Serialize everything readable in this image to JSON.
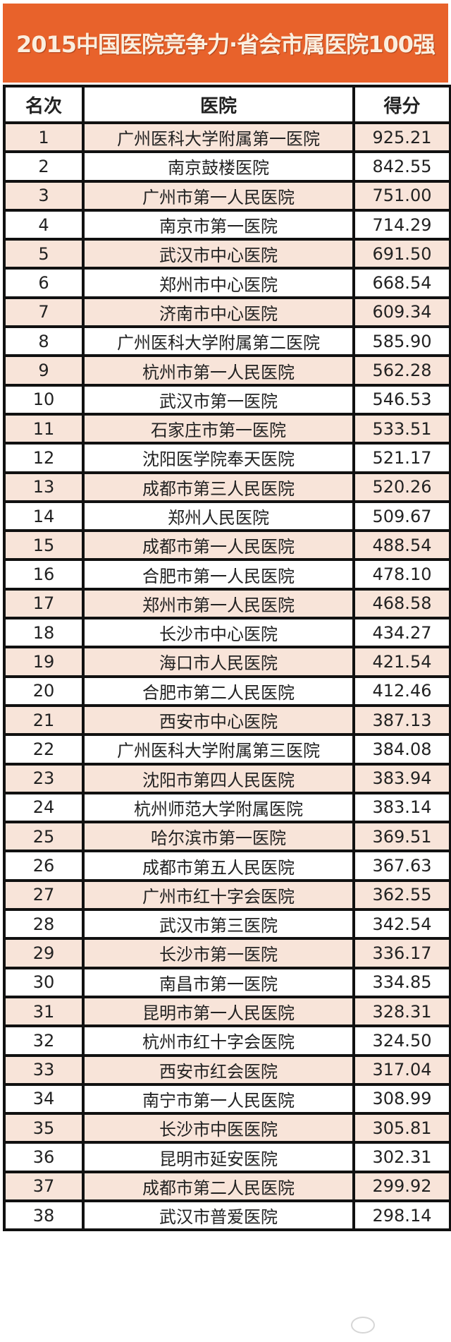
{
  "title": "2015中国医院竞争力·省会市属医院100强",
  "colors": {
    "header_bg": "#e8622b",
    "odd_row": "#f8e4d9",
    "even_row": "#ffffff"
  },
  "table": {
    "headers": [
      "名次",
      "医院",
      "得分"
    ],
    "rows": [
      [
        "1",
        "广州医科大学附属第一医院",
        "925.21"
      ],
      [
        "2",
        "南京鼓楼医院",
        "842.55"
      ],
      [
        "3",
        "广州市第一人民医院",
        "751.00"
      ],
      [
        "4",
        "南京市第一医院",
        "714.29"
      ],
      [
        "5",
        "武汉市中心医院",
        "691.50"
      ],
      [
        "6",
        "郑州市中心医院",
        "668.54"
      ],
      [
        "7",
        "济南市中心医院",
        "609.34"
      ],
      [
        "8",
        "广州医科大学附属第二医院",
        "585.90"
      ],
      [
        "9",
        "杭州市第一人民医院",
        "562.28"
      ],
      [
        "10",
        "武汉市第一医院",
        "546.53"
      ],
      [
        "11",
        "石家庄市第一医院",
        "533.51"
      ],
      [
        "12",
        "沈阳医学院奉天医院",
        "521.17"
      ],
      [
        "13",
        "成都市第三人民医院",
        "520.26"
      ],
      [
        "14",
        "郑州人民医院",
        "509.67"
      ],
      [
        "15",
        "成都市第一人民医院",
        "488.54"
      ],
      [
        "16",
        "合肥市第一人民医院",
        "478.10"
      ],
      [
        "17",
        "郑州市第一人民医院",
        "468.58"
      ],
      [
        "18",
        "长沙市中心医院",
        "434.27"
      ],
      [
        "19",
        "海口市人民医院",
        "421.54"
      ],
      [
        "20",
        "合肥市第二人民医院",
        "412.46"
      ],
      [
        "21",
        "西安市中心医院",
        "387.13"
      ],
      [
        "22",
        "广州医科大学附属第三医院",
        "384.08"
      ],
      [
        "23",
        "沈阳市第四人民医院",
        "383.94"
      ],
      [
        "24",
        "杭州师范大学附属医院",
        "383.14"
      ],
      [
        "25",
        "哈尔滨市第一医院",
        "369.51"
      ],
      [
        "26",
        "成都市第五人民医院",
        "367.63"
      ],
      [
        "27",
        "广州市红十字会医院",
        "362.55"
      ],
      [
        "28",
        "武汉市第三医院",
        "342.54"
      ],
      [
        "29",
        "长沙市第一医院",
        "336.17"
      ],
      [
        "30",
        "南昌市第一医院",
        "334.85"
      ],
      [
        "31",
        "昆明市第一人民医院",
        "328.31"
      ],
      [
        "32",
        "杭州市红十字会医院",
        "324.50"
      ],
      [
        "33",
        "西安市红会医院",
        "317.04"
      ],
      [
        "34",
        "南宁市第一人民医院",
        "308.99"
      ],
      [
        "35",
        "长沙市中医医院",
        "305.81"
      ],
      [
        "36",
        "昆明市延安医院",
        "302.31"
      ],
      [
        "37",
        "成都市第二人民医院",
        "299.92"
      ],
      [
        "38",
        "武汉市普爱医院",
        "298.14"
      ]
    ]
  },
  "watermark": {
    "icon": "wechat-icon"
  }
}
